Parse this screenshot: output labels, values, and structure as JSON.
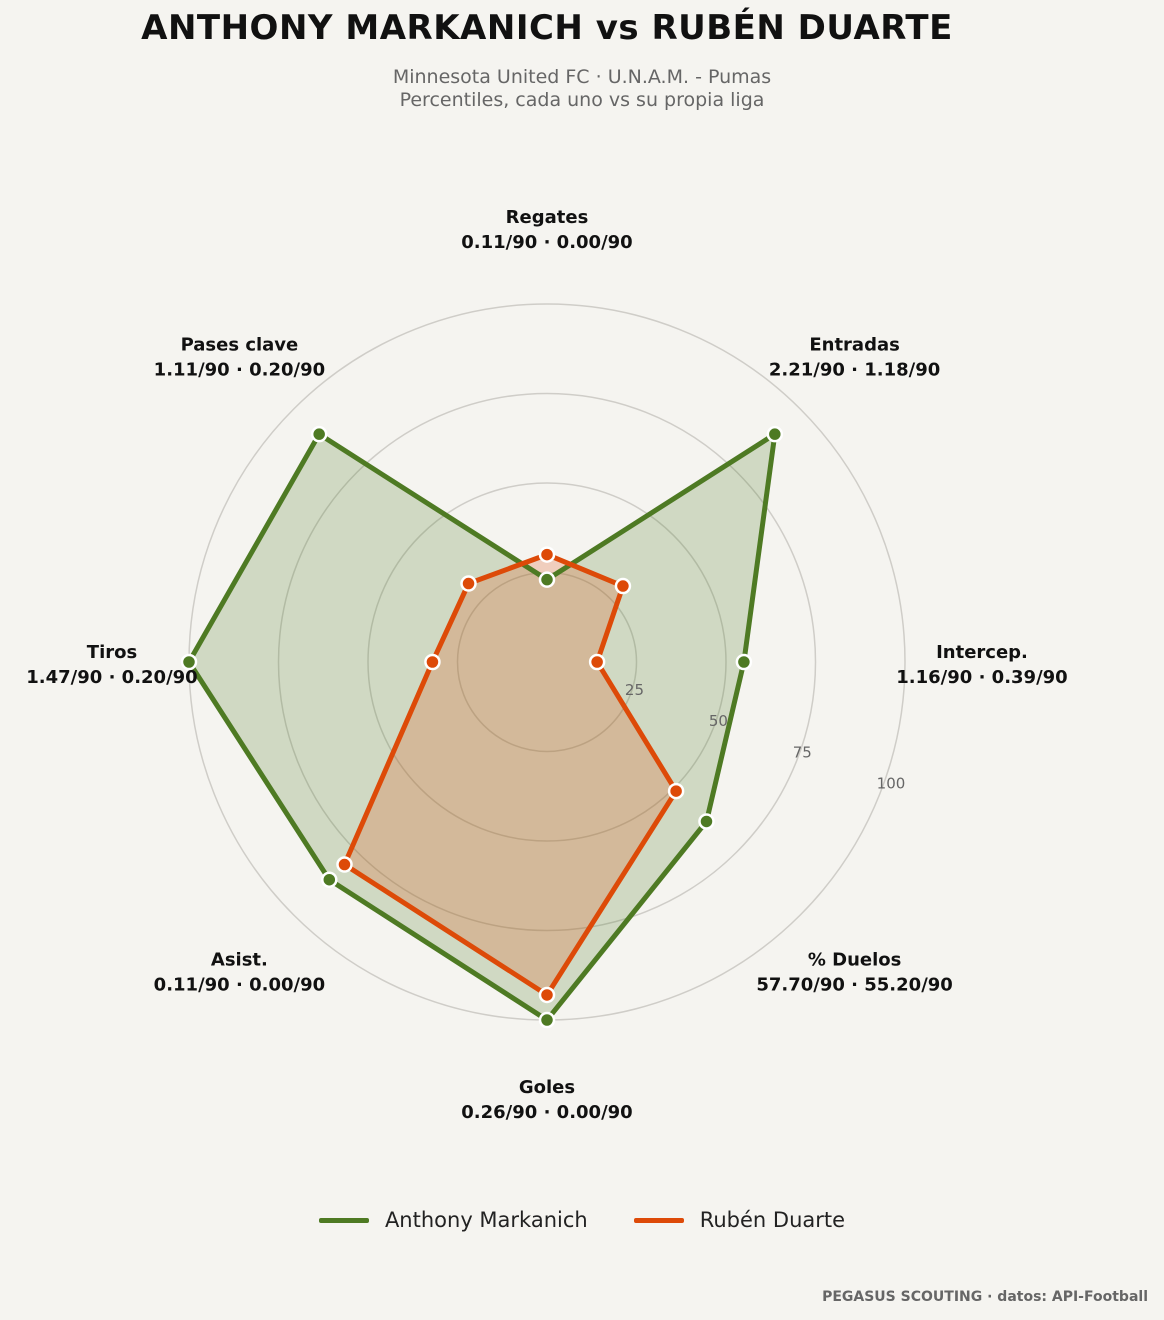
{
  "header": {
    "title": "ANTHONY MARKANICH  vs  RUBÉN DUARTE",
    "subtitle_line1": "Minnesota United FC · U.N.A.M. - Pumas",
    "subtitle_line2": "Percentiles, cada uno vs su propia liga"
  },
  "footer": {
    "credit": "PEGASUS SCOUTING · datos: API-Football"
  },
  "colors": {
    "series_a": "#4e7a23",
    "series_b": "#dd4a08",
    "fill_a": "rgba(78,122,35,0.22)",
    "fill_b": "rgba(221,74,8,0.22)",
    "grid": "#cfcdc8",
    "background": "#f5f4f0"
  },
  "chart_data": {
    "type": "radar",
    "axes": [
      {
        "name": "Regates",
        "values_text": "0.11/90 · 0.00/90"
      },
      {
        "name": "Entradas",
        "values_text": "2.21/90 · 1.18/90"
      },
      {
        "name": "Intercep.",
        "values_text": "1.16/90 · 0.39/90"
      },
      {
        "name": "% Duelos",
        "values_text": "57.70/90 · 55.20/90"
      },
      {
        "name": "Goles",
        "values_text": "0.26/90 · 0.00/90"
      },
      {
        "name": "Asist.",
        "values_text": "0.11/90 · 0.00/90"
      },
      {
        "name": "Tiros",
        "values_text": "1.47/90 · 0.20/90"
      },
      {
        "name": "Pases clave",
        "values_text": "1.11/90 · 0.20/90"
      }
    ],
    "rlim": [
      0,
      100
    ],
    "rticks": [
      25,
      50,
      75,
      100
    ],
    "series": [
      {
        "name": "Anthony Markanich",
        "values": [
          23,
          90,
          55,
          63,
          100,
          86,
          100,
          90
        ]
      },
      {
        "name": "Rubén Duarte",
        "values": [
          30,
          30,
          14,
          51,
          93,
          80,
          32,
          31
        ]
      }
    ],
    "legend_position": "bottom-center",
    "grid": true
  }
}
